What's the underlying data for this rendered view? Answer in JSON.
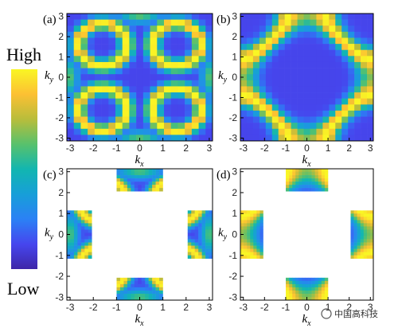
{
  "colorbar": {
    "high_label": "High",
    "low_label": "Low"
  },
  "watermark": {
    "text": "中国高科技"
  },
  "colors": {
    "colormap": [
      "#3e26a8",
      "#4646ee",
      "#2b81f5",
      "#179fd8",
      "#12b6b0",
      "#58c16c",
      "#b8bd3b",
      "#fcc033",
      "#f9f624"
    ]
  },
  "chart_data": [
    {
      "type": "heatmap",
      "panel_label": "(a)",
      "xlabel": "k",
      "xlabel_sub": "x",
      "ylabel": "k",
      "ylabel_sub": "y",
      "xlim": [
        -3.14,
        3.14
      ],
      "ylim": [
        -3.14,
        3.14
      ],
      "x_ticks": [
        "-3",
        "-2",
        "-1",
        "0",
        "1",
        "2",
        "3"
      ],
      "y_ticks": [
        "3",
        "2",
        "1",
        "0",
        "-1",
        "-2",
        "-3"
      ],
      "grid_size": 21,
      "pattern": "four-pocket rings",
      "masked_regions": []
    },
    {
      "type": "heatmap",
      "panel_label": "(b)",
      "xlabel": "k",
      "xlabel_sub": "x",
      "ylabel": "k",
      "ylabel_sub": "y",
      "xlim": [
        -3.14,
        3.14
      ],
      "ylim": [
        -3.14,
        3.14
      ],
      "x_ticks": [
        "-3",
        "-2",
        "-1",
        "0",
        "1",
        "2",
        "3"
      ],
      "y_ticks": [
        "3",
        "2",
        "1",
        "0",
        "-1",
        "-2",
        "-3"
      ],
      "grid_size": 21,
      "pattern": "cross-shaped contour",
      "masked_regions": []
    },
    {
      "type": "heatmap",
      "panel_label": "(c)",
      "xlabel": "k",
      "xlabel_sub": "x",
      "ylabel": "k",
      "ylabel_sub": "y",
      "xlim": [
        -3.14,
        3.14
      ],
      "ylim": [
        -3.14,
        3.14
      ],
      "x_ticks": [
        "-3",
        "-2",
        "-1",
        "0",
        "1",
        "2",
        "3"
      ],
      "y_ticks": [
        "3",
        "2",
        "1",
        "0",
        "-1",
        "-2",
        "-3"
      ],
      "grid_size": 41,
      "pattern": "four-pocket rings",
      "masked_regions": [
        {
          "x": [
            -1.0,
            1.0
          ],
          "y": [
            2.0,
            3.14
          ]
        },
        {
          "x": [
            -1.0,
            1.0
          ],
          "y": [
            -3.14,
            -2.0
          ]
        },
        {
          "x": [
            -3.14,
            -2.0
          ],
          "y": [
            -1.2,
            1.2
          ]
        },
        {
          "x": [
            2.0,
            3.14
          ],
          "y": [
            -1.2,
            1.2
          ]
        }
      ]
    },
    {
      "type": "heatmap",
      "panel_label": "(d)",
      "xlabel": "k",
      "xlabel_sub": "x",
      "ylabel": "k",
      "ylabel_sub": "y",
      "xlim": [
        -3.14,
        3.14
      ],
      "ylim": [
        -3.14,
        3.14
      ],
      "x_ticks": [
        "-3",
        "-2",
        "-1",
        "0",
        "1",
        "2",
        "3"
      ],
      "y_ticks": [
        "3",
        "2",
        "1",
        "0",
        "-1",
        "-2",
        "-3"
      ],
      "grid_size": 41,
      "pattern": "cross-shaped contour",
      "masked_regions": [
        {
          "x": [
            -1.0,
            1.0
          ],
          "y": [
            2.0,
            3.14
          ]
        },
        {
          "x": [
            -1.0,
            1.0
          ],
          "y": [
            -3.14,
            -2.0
          ]
        },
        {
          "x": [
            -3.14,
            -2.0
          ],
          "y": [
            -1.2,
            1.2
          ]
        },
        {
          "x": [
            2.0,
            3.14
          ],
          "y": [
            -1.2,
            1.2
          ]
        }
      ]
    }
  ]
}
